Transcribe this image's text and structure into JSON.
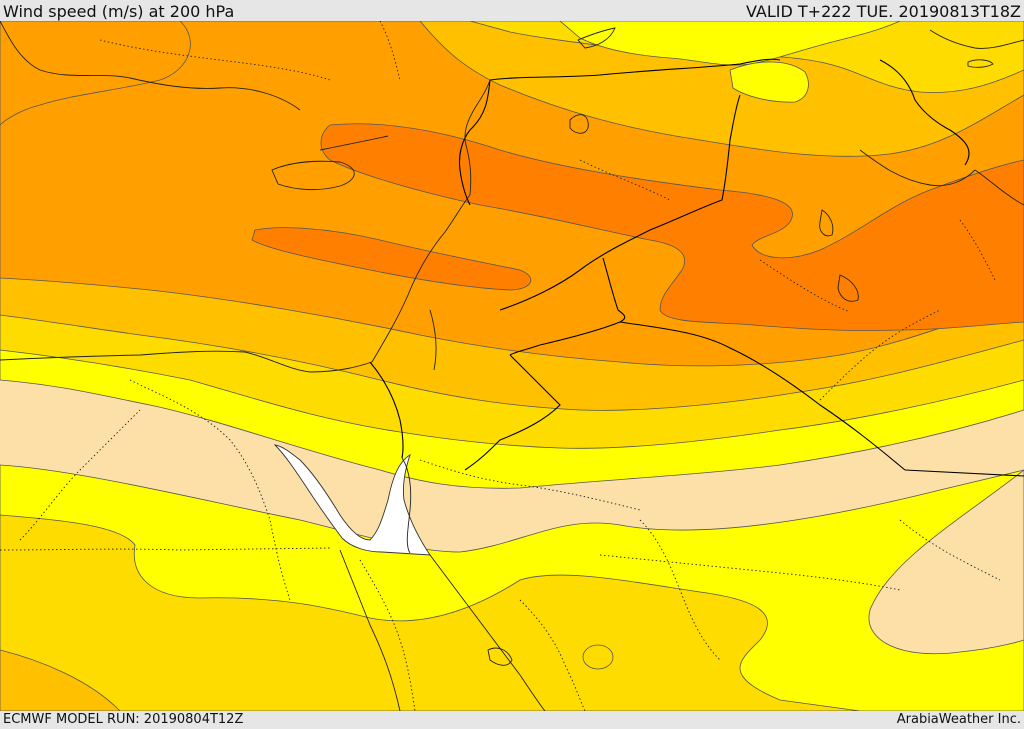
{
  "header": {
    "title": "Wind speed (m/s) at 200 hPa",
    "valid": "VALID T+222 TUE. 20190813T18Z"
  },
  "footer": {
    "model_run": "ECMWF MODEL RUN: 20190804T12Z",
    "brand": "ArabiaWeather Inc."
  },
  "colors": {
    "band_peach": "#fde0a8",
    "band_yellow": "#ffff00",
    "band_gold": "#ffdc00",
    "band_amber": "#ffc000",
    "band_orange": "#ffa000",
    "band_deep_orange": "#ff8000",
    "water_white": "#ffffff",
    "border_black": "#000000",
    "contour_grey": "#555555",
    "frame_grey": "#e6e6e6"
  }
}
